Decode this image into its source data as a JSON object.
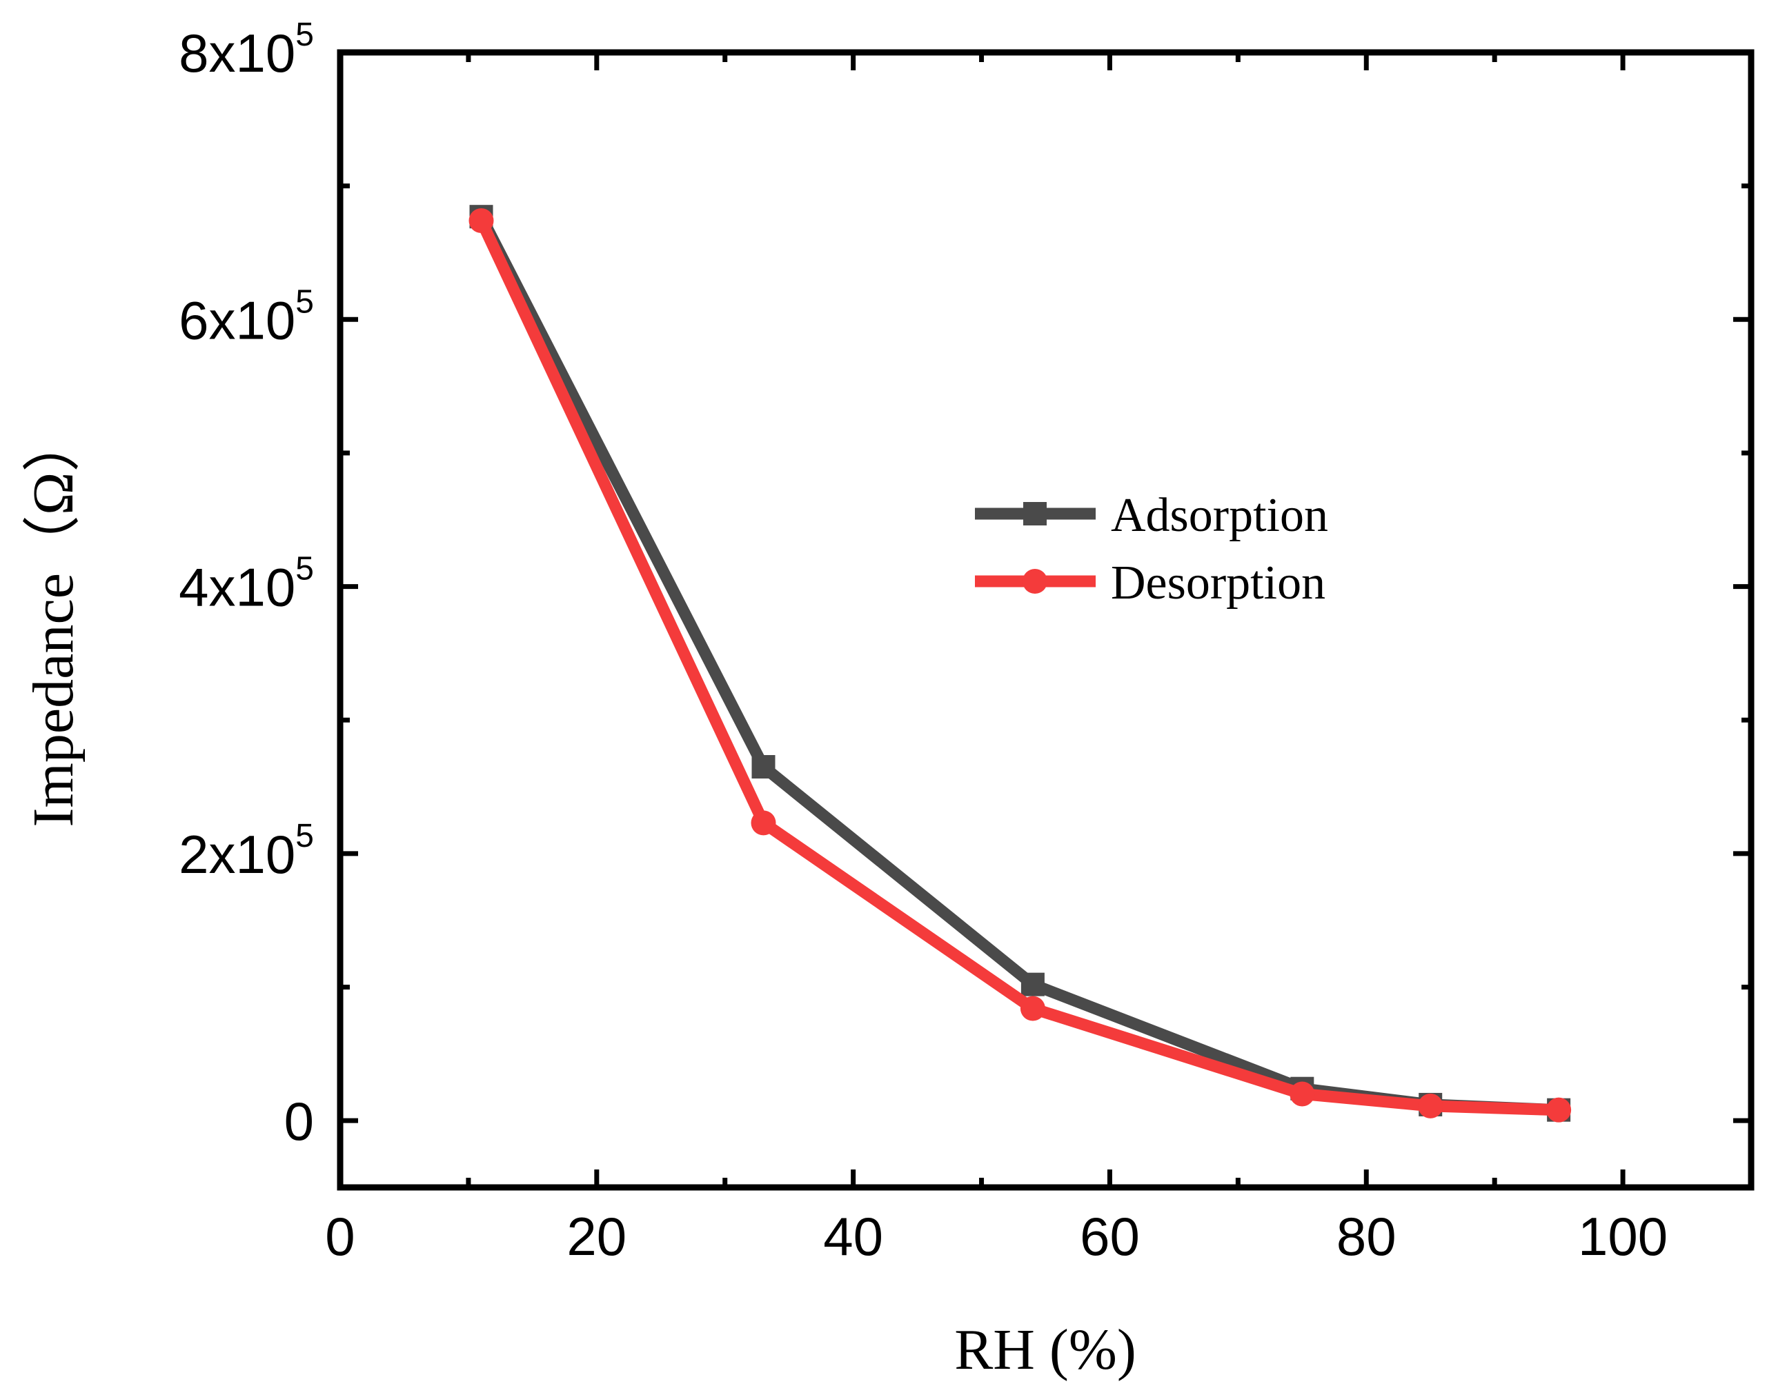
{
  "chart_data": {
    "type": "line",
    "title": "",
    "xlabel": "RH (%)",
    "ylabel": "Impedance（Ω）",
    "xlim": [
      0,
      110
    ],
    "ylim": [
      -50000,
      800000
    ],
    "x_ticks": [
      0,
      20,
      40,
      60,
      80,
      100
    ],
    "x_tick_labels": [
      "0",
      "20",
      "40",
      "60",
      "80",
      "100"
    ],
    "y_ticks": [
      0,
      200000,
      400000,
      600000,
      800000
    ],
    "y_tick_labels": [
      {
        "base": "0",
        "exp": ""
      },
      {
        "base": "2x10",
        "exp": "5"
      },
      {
        "base": "4x10",
        "exp": "5"
      },
      {
        "base": "6x10",
        "exp": "5"
      },
      {
        "base": "8x10",
        "exp": "5"
      }
    ],
    "x_minor_step": 10,
    "y_minor_step": 100000,
    "grid": false,
    "legend_position": "center-right",
    "series": [
      {
        "name": "Adsorption",
        "color": "#4a4a4a",
        "marker": "square",
        "x": [
          11,
          33,
          54,
          75,
          85,
          95
        ],
        "values": [
          677000,
          265000,
          102000,
          24000,
          12000,
          8000
        ]
      },
      {
        "name": "Desorption",
        "color": "#f43b3b",
        "marker": "circle",
        "x": [
          11,
          33,
          54,
          75,
          85,
          95
        ],
        "values": [
          674000,
          223000,
          84000,
          20000,
          11000,
          8000
        ]
      }
    ]
  }
}
